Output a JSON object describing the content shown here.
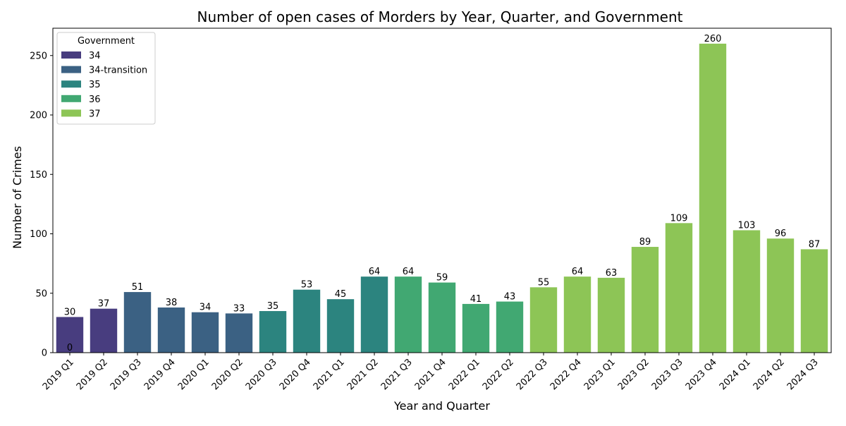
{
  "chart_data": {
    "type": "bar",
    "title": "Number of open cases of Morders by Year, Quarter, and Government",
    "xlabel": "Year and Quarter",
    "ylabel": "Number of Crimes",
    "ylim": [
      0,
      273
    ],
    "yticks": [
      0,
      50,
      100,
      150,
      200,
      250
    ],
    "grid": false,
    "legend": {
      "title": "Government",
      "placement": "top-left",
      "entries": [
        {
          "label": "34",
          "color": "#483d7f"
        },
        {
          "label": "34-transition",
          "color": "#3b6183"
        },
        {
          "label": "35",
          "color": "#2c847f"
        },
        {
          "label": "36",
          "color": "#41a872"
        },
        {
          "label": "37",
          "color": "#8dc556"
        }
      ]
    },
    "categories": [
      "2019 Q1",
      "2019 Q2",
      "2019 Q3",
      "2019 Q4",
      "2020 Q1",
      "2020 Q2",
      "2020 Q3",
      "2020 Q4",
      "2021 Q1",
      "2021 Q2",
      "2021 Q3",
      "2021 Q4",
      "2022 Q1",
      "2022 Q2",
      "2022 Q3",
      "2022 Q4",
      "2023 Q1",
      "2023 Q2",
      "2023 Q3",
      "2023 Q4",
      "2024 Q1",
      "2024 Q2",
      "2024 Q3"
    ],
    "values": [
      30,
      37,
      51,
      38,
      34,
      33,
      35,
      53,
      45,
      64,
      64,
      59,
      41,
      43,
      55,
      64,
      63,
      89,
      109,
      260,
      103,
      96,
      87
    ],
    "government": [
      "34",
      "34",
      "34-transition",
      "34-transition",
      "34-transition",
      "34-transition",
      "35",
      "35",
      "35",
      "35",
      "36",
      "36",
      "36",
      "36",
      "37",
      "37",
      "37",
      "37",
      "37",
      "37",
      "37",
      "37",
      "37"
    ],
    "extra_labels": [
      {
        "category": "2019 Q1",
        "text": "0"
      }
    ]
  }
}
